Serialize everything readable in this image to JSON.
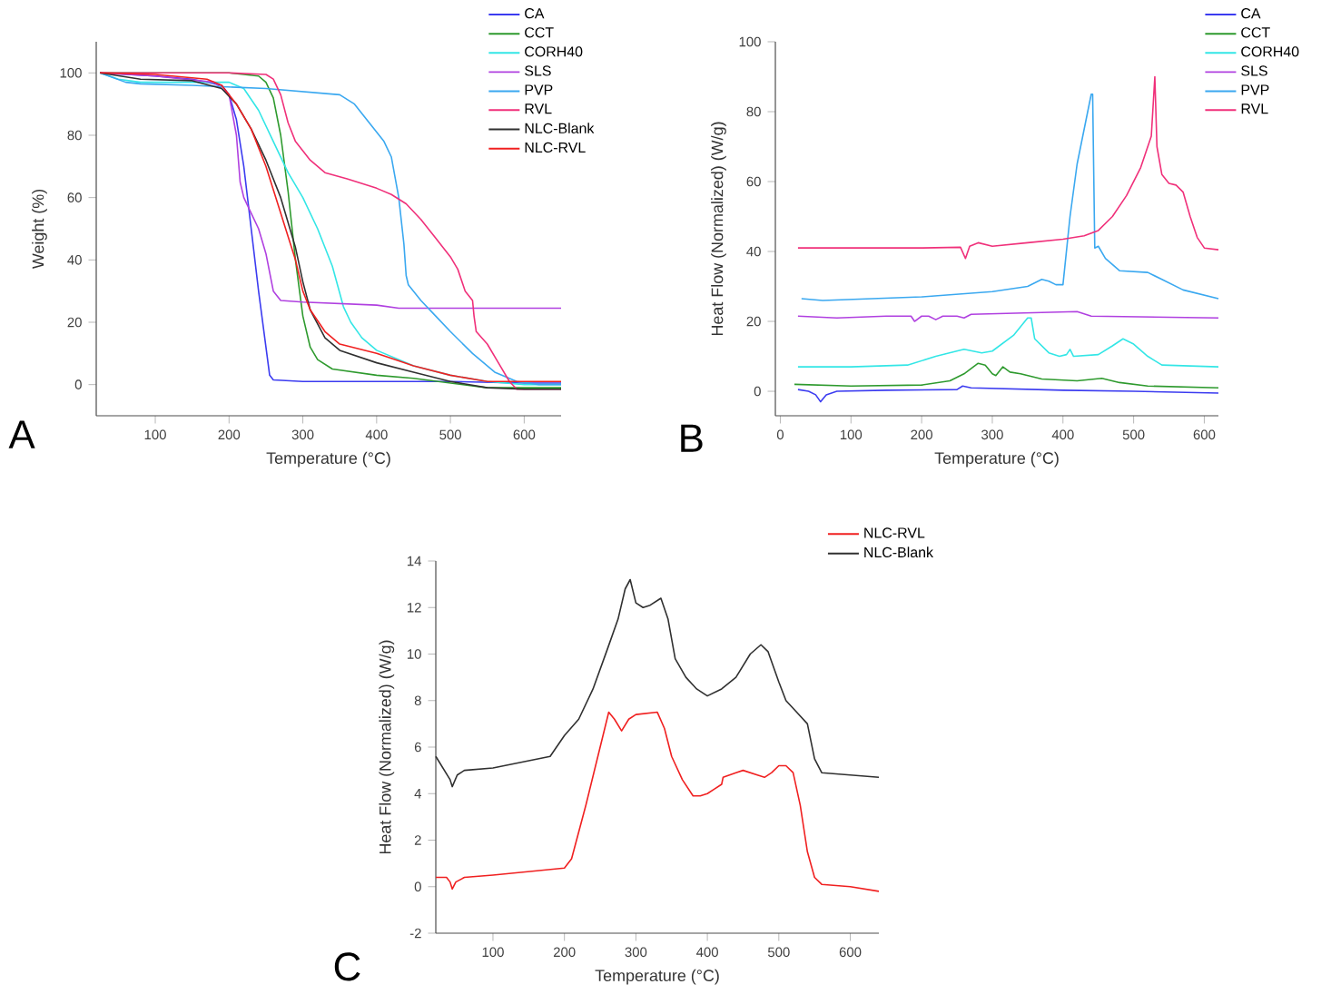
{
  "chart_data": [
    {
      "type": "line",
      "xlabel": "Temperature (°C)",
      "ylabel": "Weight (%)",
      "xlim": [
        20,
        650
      ],
      "ylim": [
        -10,
        110
      ],
      "xticks": [
        100,
        200,
        300,
        400,
        500,
        600
      ],
      "yticks": [
        0,
        20,
        40,
        60,
        80,
        100
      ],
      "legend": "top right",
      "annotations": [
        "A"
      ],
      "series": [
        {
          "name": "CA",
          "color": "#3b3bf0",
          "x": [
            25,
            100,
            150,
            190,
            200,
            210,
            220,
            230,
            240,
            250,
            255,
            260,
            300,
            400,
            500,
            600,
            650
          ],
          "values": [
            100,
            99,
            98,
            96,
            93,
            85,
            70,
            50,
            30,
            12,
            3,
            1.5,
            1,
            1,
            1,
            0.5,
            0.5
          ]
        },
        {
          "name": "CCT",
          "color": "#2e9a2e",
          "x": [
            25,
            100,
            200,
            240,
            250,
            260,
            270,
            280,
            290,
            300,
            310,
            320,
            340,
            400,
            450,
            500,
            550,
            600,
            650
          ],
          "values": [
            100,
            100,
            100,
            99,
            97,
            92,
            80,
            62,
            40,
            22,
            12,
            8,
            5,
            3,
            2,
            0.5,
            -1,
            -1,
            -1
          ]
        },
        {
          "name": "CORH40",
          "color": "#33e6e6",
          "x": [
            25,
            50,
            80,
            150,
            200,
            220,
            240,
            260,
            280,
            300,
            320,
            340,
            355,
            365,
            380,
            400,
            450,
            500,
            550,
            600,
            650
          ],
          "values": [
            100,
            98,
            97,
            97,
            97,
            95,
            88,
            78,
            68,
            60,
            50,
            38,
            25,
            20,
            15,
            11,
            6,
            3,
            1,
            0,
            0
          ]
        },
        {
          "name": "SLS",
          "color": "#b040e0",
          "x": [
            25,
            100,
            180,
            200,
            210,
            215,
            220,
            230,
            240,
            250,
            260,
            270,
            300,
            400,
            430,
            500,
            650
          ],
          "values": [
            100,
            99,
            97,
            93,
            80,
            65,
            60,
            55,
            50,
            42,
            30,
            27,
            26.5,
            25.5,
            24.5,
            24.5,
            24.5
          ]
        },
        {
          "name": "PVP",
          "color": "#3aa8f0",
          "x": [
            25,
            60,
            80,
            150,
            250,
            350,
            370,
            390,
            410,
            420,
            430,
            437,
            440,
            443,
            460,
            480,
            500,
            530,
            560,
            590,
            620,
            650
          ],
          "values": [
            100,
            97,
            96.5,
            96,
            95,
            93,
            90,
            84,
            78,
            73,
            60,
            45,
            35,
            32,
            27,
            22,
            17,
            10,
            4,
            1,
            0,
            0
          ]
        },
        {
          "name": "RVL",
          "color": "#f0307a",
          "x": [
            25,
            100,
            200,
            250,
            260,
            270,
            280,
            290,
            310,
            330,
            360,
            400,
            420,
            440,
            460,
            480,
            500,
            510,
            520,
            530,
            532,
            535,
            550,
            565,
            580,
            590,
            650
          ],
          "values": [
            100,
            100,
            100,
            99.5,
            98,
            93,
            84,
            78,
            72,
            68,
            66,
            63,
            61,
            58,
            53,
            47,
            41,
            37,
            30,
            27,
            22,
            17,
            13,
            7,
            1,
            -1.5,
            -1.5
          ]
        },
        {
          "name": "NLC-Blank",
          "color": "#303030",
          "x": [
            25,
            80,
            150,
            190,
            210,
            230,
            250,
            270,
            290,
            300,
            310,
            330,
            350,
            400,
            450,
            500,
            550,
            600,
            650
          ],
          "values": [
            100,
            98,
            97.5,
            95,
            90,
            82,
            72,
            60,
            44,
            33,
            24,
            15,
            11,
            7,
            4,
            1,
            -1,
            -1.5,
            -1.5
          ]
        },
        {
          "name": "NLC-RVL",
          "color": "#f02020",
          "x": [
            25,
            100,
            170,
            190,
            210,
            230,
            250,
            270,
            290,
            300,
            310,
            330,
            350,
            400,
            450,
            500,
            550,
            650
          ],
          "values": [
            100,
            99.5,
            98,
            96,
            90,
            82,
            70,
            55,
            40,
            30,
            24,
            17,
            13,
            10,
            6,
            3,
            1,
            1
          ]
        }
      ]
    },
    {
      "type": "line",
      "xlabel": "Temperature (°C)",
      "ylabel": "Heat Flow (Normalized) (W/g)",
      "xlim": [
        -7,
        620
      ],
      "ylim": [
        -7,
        100
      ],
      "xticks": [
        0,
        100,
        200,
        300,
        400,
        500,
        600
      ],
      "yticks": [
        0,
        20,
        40,
        60,
        80,
        100
      ],
      "legend": "top right",
      "annotations": [
        "B"
      ],
      "series": [
        {
          "name": "CA",
          "color": "#3b3bf0",
          "x": [
            25,
            40,
            50,
            57,
            65,
            80,
            150,
            250,
            258,
            270,
            400,
            500,
            620
          ],
          "values": [
            0.5,
            0,
            -1,
            -3,
            -1,
            0,
            0.3,
            0.5,
            1.5,
            1,
            0.3,
            0,
            -0.5
          ]
        },
        {
          "name": "CCT",
          "color": "#2e9a2e",
          "x": [
            20,
            100,
            200,
            240,
            260,
            280,
            290,
            300,
            305,
            315,
            325,
            340,
            370,
            420,
            455,
            480,
            520,
            620
          ],
          "values": [
            2,
            1.5,
            1.8,
            3,
            5,
            8,
            7.5,
            5,
            4.5,
            7,
            5.5,
            5,
            3.5,
            3,
            3.7,
            2.5,
            1.5,
            1
          ]
        },
        {
          "name": "CORH40",
          "color": "#33e6e6",
          "x": [
            25,
            100,
            180,
            220,
            260,
            285,
            300,
            330,
            350,
            355,
            360,
            380,
            395,
            405,
            410,
            415,
            450,
            470,
            485,
            500,
            520,
            540,
            620
          ],
          "values": [
            7,
            7,
            7.5,
            10,
            12,
            11,
            11.5,
            16,
            21,
            21,
            15,
            11,
            10,
            10.5,
            12,
            10,
            10.5,
            13,
            15,
            13.5,
            10,
            7.5,
            7
          ]
        },
        {
          "name": "SLS",
          "color": "#b040e0",
          "x": [
            25,
            80,
            150,
            185,
            190,
            200,
            210,
            220,
            230,
            250,
            260,
            270,
            420,
            440,
            620
          ],
          "values": [
            21.5,
            21,
            21.5,
            21.5,
            20,
            21.5,
            21.5,
            20.5,
            21.5,
            21.5,
            21,
            22,
            22.8,
            21.5,
            21
          ]
        },
        {
          "name": "PVP",
          "color": "#3aa8f0",
          "x": [
            30,
            60,
            200,
            300,
            350,
            370,
            380,
            390,
            400,
            410,
            420,
            430,
            440,
            442,
            445,
            450,
            460,
            480,
            520,
            540,
            570,
            620
          ],
          "values": [
            26.5,
            26,
            27,
            28.5,
            30,
            32,
            31.5,
            30.5,
            30.5,
            50,
            65,
            75,
            85,
            85,
            41,
            41.5,
            38,
            34.5,
            34,
            32,
            29,
            26.5
          ]
        },
        {
          "name": "RVL",
          "color": "#f0307a",
          "x": [
            25,
            100,
            200,
            255,
            262,
            268,
            280,
            300,
            350,
            400,
            430,
            450,
            470,
            490,
            510,
            525,
            530,
            533,
            540,
            550,
            560,
            570,
            580,
            590,
            600,
            620
          ],
          "values": [
            41,
            41,
            41,
            41.2,
            38,
            41.5,
            42.5,
            41.5,
            42.5,
            43.5,
            44.5,
            46,
            50,
            56,
            64,
            73,
            90,
            70,
            62,
            59.5,
            59,
            57,
            50,
            44,
            41,
            40.5
          ]
        }
      ]
    },
    {
      "type": "line",
      "xlabel": "Temperature (°C)",
      "ylabel": "Heat Flow (Normalized) (W/g)",
      "xlim": [
        20,
        640
      ],
      "ylim": [
        -2,
        14
      ],
      "xticks": [
        100,
        200,
        300,
        400,
        500,
        600
      ],
      "yticks": [
        -2,
        0,
        2,
        4,
        6,
        8,
        10,
        12,
        14
      ],
      "legend": "top right",
      "annotations": [
        "C"
      ],
      "series": [
        {
          "name": "NLC-RVL",
          "color": "#f02020",
          "x": [
            20,
            35,
            40,
            43,
            48,
            60,
            100,
            200,
            210,
            230,
            250,
            262,
            270,
            280,
            290,
            300,
            330,
            340,
            350,
            365,
            380,
            390,
            400,
            410,
            420,
            422,
            440,
            450,
            470,
            480,
            490,
            500,
            510,
            520,
            530,
            540,
            550,
            560,
            600,
            640
          ],
          "values": [
            0.4,
            0.4,
            0.2,
            -0.1,
            0.2,
            0.4,
            0.5,
            0.8,
            1.2,
            3.5,
            6,
            7.5,
            7.2,
            6.7,
            7.2,
            7.4,
            7.5,
            6.8,
            5.6,
            4.6,
            3.9,
            3.9,
            4,
            4.2,
            4.4,
            4.7,
            4.9,
            5,
            4.8,
            4.7,
            4.9,
            5.2,
            5.2,
            4.9,
            3.5,
            1.5,
            0.4,
            0.1,
            0,
            -0.2
          ]
        },
        {
          "name": "NLC-Blank",
          "color": "#303030",
          "x": [
            20,
            30,
            40,
            43,
            50,
            60,
            100,
            180,
            200,
            220,
            240,
            260,
            275,
            285,
            292,
            300,
            310,
            320,
            335,
            345,
            355,
            370,
            385,
            400,
            420,
            440,
            460,
            475,
            485,
            500,
            510,
            525,
            540,
            550,
            560,
            600,
            640
          ],
          "values": [
            5.6,
            5.1,
            4.6,
            4.3,
            4.8,
            5,
            5.1,
            5.6,
            6.5,
            7.2,
            8.5,
            10.2,
            11.5,
            12.8,
            13.2,
            12.2,
            12,
            12.1,
            12.4,
            11.5,
            9.8,
            9,
            8.5,
            8.2,
            8.5,
            9,
            10,
            10.4,
            10.1,
            8.8,
            8,
            7.5,
            7,
            5.5,
            4.9,
            4.8,
            4.7
          ]
        }
      ]
    }
  ]
}
